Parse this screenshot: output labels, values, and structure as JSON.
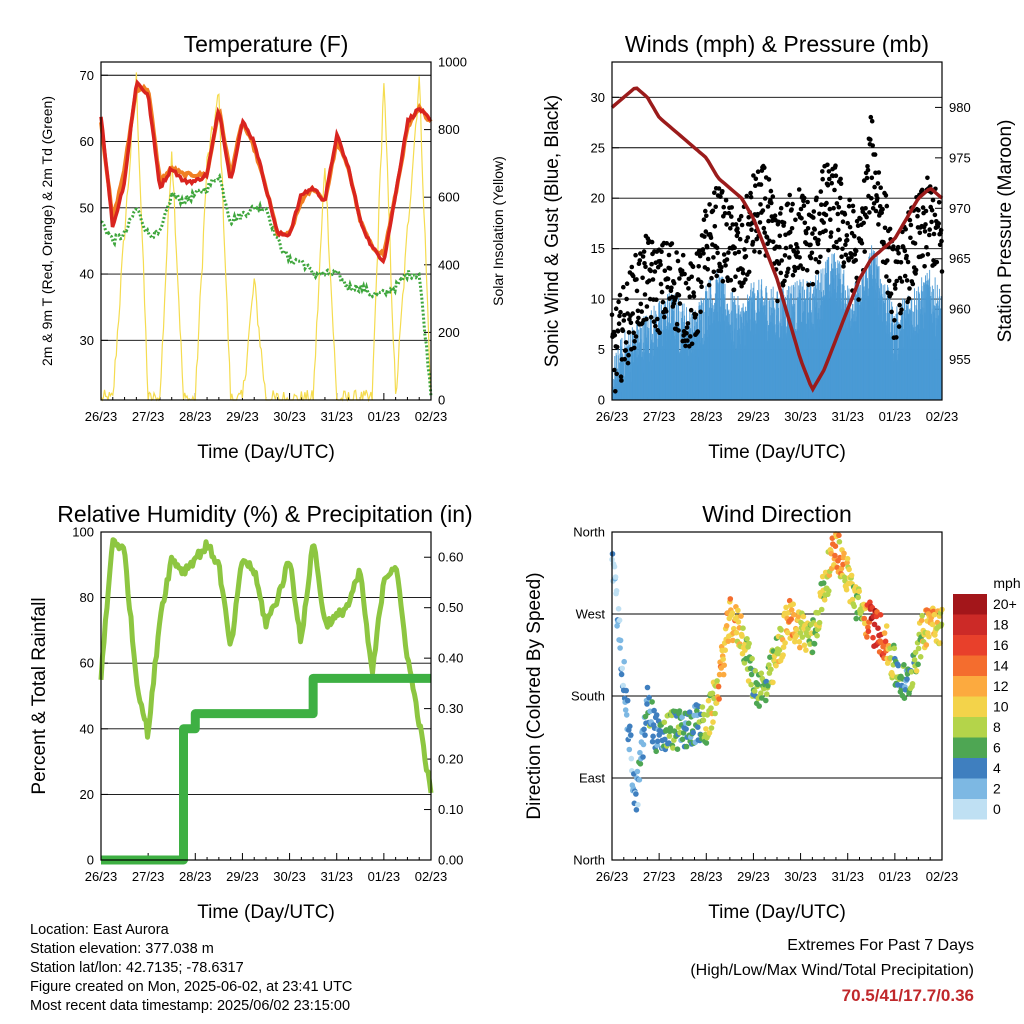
{
  "x_ticks": [
    "26/23",
    "27/23",
    "28/23",
    "29/23",
    "30/23",
    "31/23",
    "01/23",
    "02/23"
  ],
  "colors": {
    "temp2m": "#d9241f",
    "temp9m": "#f07f23",
    "dewpoint": "#3ea63c",
    "solar": "#f5dc50",
    "wind": "#4a9ad5",
    "gust": "#000000",
    "pressure": "#9b1b1b",
    "rh": "#8dc641",
    "precip": "#3eb043"
  },
  "chart_data": [
    {
      "type": "line",
      "title": "Temperature (F)",
      "xlabel": "Time (Day/UTC)",
      "ylabel": "2m & 9m T (Red, Orange) & 2m Td (Green)",
      "y2label": "Solar Insolation (Yellow)",
      "ylim": [
        21,
        72
      ],
      "y2lim": [
        0,
        1000
      ],
      "yticks": [
        30,
        40,
        50,
        60,
        70
      ],
      "y2ticks": [
        0,
        200,
        400,
        600,
        800,
        1000
      ],
      "x_days": [
        0,
        0.25,
        0.5,
        0.75,
        1,
        1.25,
        1.5,
        1.75,
        2,
        2.25,
        2.5,
        2.75,
        3,
        3.25,
        3.5,
        3.75,
        4,
        4.25,
        4.5,
        4.75,
        5,
        5.25,
        5.5,
        5.75,
        6,
        6.25,
        6.5,
        6.75,
        7
      ],
      "series": [
        {
          "name": "2m T",
          "values": [
            64,
            47,
            54,
            69,
            67,
            53,
            56,
            54,
            54,
            55,
            65,
            54,
            63,
            60,
            53,
            46,
            46,
            52,
            53,
            51,
            61,
            56,
            48,
            44,
            42,
            52,
            63,
            65,
            63
          ]
        },
        {
          "name": "9m T",
          "values": [
            63,
            48,
            56,
            68,
            68,
            54,
            56,
            55,
            55,
            55,
            65,
            55,
            63,
            59,
            53,
            46,
            46,
            51,
            53,
            51,
            60,
            56,
            48,
            44,
            43,
            52,
            62,
            65,
            63
          ]
        },
        {
          "name": "2m Td",
          "values": [
            48,
            45,
            46,
            50,
            46,
            46,
            52,
            51,
            52,
            53,
            55,
            48,
            49,
            50,
            50,
            45,
            42,
            42,
            40,
            40,
            40,
            38,
            38,
            37,
            37,
            38,
            40,
            40,
            22
          ]
        },
        {
          "name": "Solar Insolation",
          "values": [
            0,
            0,
            500,
            950,
            0,
            0,
            750,
            0,
            0,
            700,
            900,
            0,
            0,
            350,
            0,
            0,
            0,
            0,
            0,
            700,
            0,
            0,
            0,
            0,
            950,
            0,
            500,
            950,
            0
          ]
        }
      ]
    },
    {
      "type": "scatter",
      "title": "Winds (mph) & Pressure (mb)",
      "xlabel": "Time (Day/UTC)",
      "ylabel": "Sonic Wind & Gust (Blue, Black)",
      "y2label": "Station Pressure (Maroon)",
      "ylim": [
        0,
        33.5
      ],
      "y2lim": [
        951,
        984.5
      ],
      "yticks": [
        0,
        5,
        10,
        15,
        20,
        25,
        30
      ],
      "y2ticks": [
        955,
        960,
        965,
        970,
        975,
        980
      ],
      "x_days": [
        0,
        0.25,
        0.5,
        0.75,
        1,
        1.25,
        1.5,
        1.75,
        2,
        2.25,
        2.5,
        2.75,
        3,
        3.25,
        3.5,
        3.75,
        4,
        4.25,
        4.5,
        4.75,
        5,
        5.25,
        5.5,
        5.75,
        6,
        6.25,
        6.5,
        6.75,
        7
      ],
      "series": [
        {
          "name": "Sonic Wind",
          "values": [
            1,
            4,
            5,
            6,
            7,
            8,
            7,
            6,
            9,
            10,
            8,
            7,
            9,
            9,
            8,
            9,
            9,
            9,
            11,
            12,
            9,
            9,
            13,
            10,
            6,
            8,
            9,
            10,
            8
          ]
        },
        {
          "name": "Gust",
          "values": [
            4,
            7,
            10,
            12,
            11,
            12,
            10,
            9,
            15,
            17,
            15,
            14,
            18,
            19,
            14,
            16,
            17,
            15,
            19,
            19,
            16,
            14,
            24,
            18,
            10,
            14,
            16,
            18,
            15
          ]
        },
        {
          "name": "Station Pressure",
          "values": [
            980,
            981,
            982,
            981,
            979,
            978,
            977,
            976,
            975,
            973,
            972,
            971,
            969,
            966,
            963,
            959,
            955,
            952,
            954,
            957,
            960,
            963,
            965,
            966,
            967,
            969,
            971,
            972,
            971
          ]
        }
      ]
    },
    {
      "type": "line",
      "title": "Relative Humidity (%) & Precipitation (in)",
      "xlabel": "Time (Day/UTC)",
      "ylabel": "Percent & Total Rainfall",
      "ylim": [
        0,
        100
      ],
      "y2lim": [
        0,
        0.65
      ],
      "yticks": [
        0,
        20,
        40,
        60,
        80,
        100
      ],
      "y2ticks": [
        "0.00",
        "0.10",
        "0.20",
        "0.30",
        "0.40",
        "0.50",
        "0.60"
      ],
      "x_days": [
        0,
        0.25,
        0.5,
        0.75,
        1,
        1.25,
        1.5,
        1.75,
        2,
        2.25,
        2.5,
        2.75,
        3,
        3.25,
        3.5,
        3.75,
        4,
        4.25,
        4.5,
        4.75,
        5,
        5.25,
        5.5,
        5.75,
        6,
        6.25,
        6.5,
        6.75,
        7
      ],
      "series": [
        {
          "name": "Relative Humidity",
          "values": [
            56,
            98,
            94,
            55,
            38,
            74,
            92,
            88,
            92,
            96,
            90,
            64,
            92,
            88,
            72,
            80,
            92,
            66,
            98,
            72,
            74,
            78,
            88,
            56,
            86,
            90,
            62,
            42,
            20
          ]
        },
        {
          "name": "Total Precipitation",
          "values": [
            0,
            0,
            0,
            0,
            0,
            0,
            0,
            0.26,
            0.29,
            0.29,
            0.29,
            0.29,
            0.29,
            0.29,
            0.29,
            0.29,
            0.29,
            0.29,
            0.36,
            0.36,
            0.36,
            0.36,
            0.36,
            0.36,
            0.36,
            0.36,
            0.36,
            0.36,
            0.36
          ]
        }
      ]
    },
    {
      "type": "scatter",
      "title": "Wind Direction",
      "xlabel": "Time (Day/UTC)",
      "ylabel": "Direction (Colored By Speed)",
      "ylim": [
        0,
        360
      ],
      "ytick_labels": [
        "North",
        "East",
        "South",
        "West",
        "North"
      ],
      "x_days": [
        0,
        0.25,
        0.5,
        0.75,
        1,
        1.25,
        1.5,
        1.75,
        2,
        2.25,
        2.5,
        2.75,
        3,
        3.25,
        3.5,
        3.75,
        4,
        4.25,
        4.5,
        4.75,
        5,
        5.25,
        5.5,
        5.75,
        6,
        6.25,
        6.5,
        6.75,
        7
      ],
      "series": [
        {
          "name": "Direction",
          "values": [
            330,
            200,
            60,
            170,
            130,
            145,
            140,
            150,
            145,
            190,
            265,
            250,
            195,
            185,
            225,
            265,
            255,
            240,
            300,
            345,
            310,
            275,
            260,
            245,
            210,
            190,
            235,
            270,
            255
          ]
        },
        {
          "name": "Speed",
          "values": [
            2,
            3,
            2,
            5,
            4,
            7,
            5,
            4,
            7,
            11,
            12,
            9,
            6,
            7,
            9,
            12,
            10,
            8,
            9,
            12,
            10,
            7,
            18,
            15,
            6,
            4,
            8,
            12,
            9
          ]
        }
      ],
      "colorbar": {
        "title": "mph",
        "labels": [
          "20+",
          "18",
          "16",
          "14",
          "12",
          "10",
          "8",
          "6",
          "4",
          "2",
          "0"
        ],
        "colors": [
          "#a3161a",
          "#cc2a27",
          "#e8402b",
          "#f46d2e",
          "#fcaa3f",
          "#f3d34a",
          "#b4d44a",
          "#4ea653",
          "#3f7fbf",
          "#7db8e3",
          "#bfe0f3"
        ]
      }
    }
  ],
  "info": {
    "location": "Location: East Aurora",
    "elevation": "Station elevation: 377.038 m",
    "latlon": "Station lat/lon: 42.7135; -78.6317",
    "created": "Figure created on Mon, 2025-06-02, at 23:41 UTC",
    "recent": "Most recent data timestamp: 2025/06/02 23:15:00"
  },
  "extremes": {
    "title": "Extremes For Past 7 Days",
    "subtitle": "(High/Low/Max Wind/Total Precipitation)",
    "values": "70.5/41/17.7/0.36"
  }
}
